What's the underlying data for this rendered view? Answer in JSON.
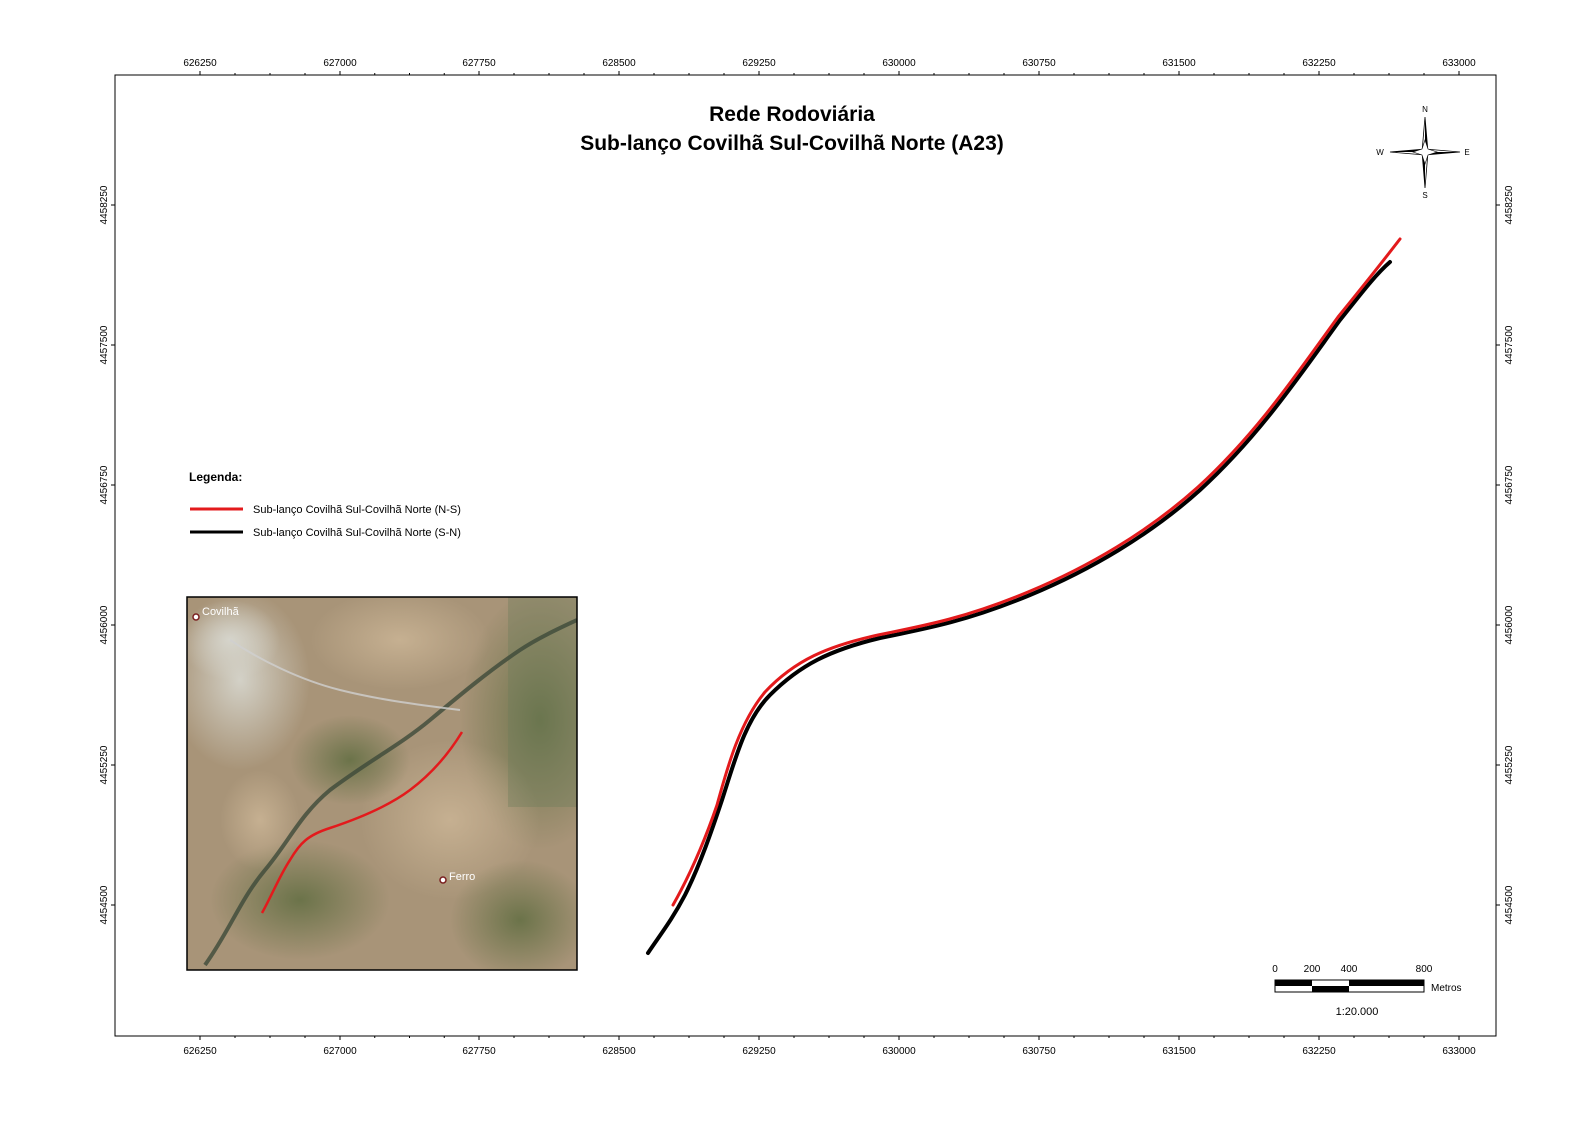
{
  "map": {
    "title_line1": "Rede Rodoviária",
    "title_line2": "Sub-lanço Covilhã Sul-Covilhã Norte (A23)",
    "grid_x_labels": [
      "626250",
      "627000",
      "627750",
      "628500",
      "629250",
      "630000",
      "630750",
      "631500",
      "632250",
      "633000"
    ],
    "grid_y_labels": [
      "4458250",
      "4457500",
      "4456750",
      "4456000",
      "4455250",
      "4454500"
    ],
    "colors": {
      "route_ns": "#e31a1c",
      "route_sn": "#000000",
      "frame": "#000000"
    }
  },
  "legend": {
    "title": "Legenda:",
    "items": [
      {
        "label": "Sub-lanço Covilhã Sul-Covilhã Norte (N-S)",
        "color": "#e31a1c"
      },
      {
        "label": "Sub-lanço Covilhã Sul-Covilhã Norte (S-N)",
        "color": "#000000"
      }
    ]
  },
  "north_arrow": {
    "n": "N",
    "s": "S",
    "e": "E",
    "w": "W",
    "icon": "north-arrow-icon"
  },
  "scale_bar": {
    "ticks": [
      "0",
      "200",
      "400",
      "800"
    ],
    "unit": "Metros",
    "ratio": "1:20.000"
  },
  "inset": {
    "places": [
      {
        "name": "Covilhã"
      },
      {
        "name": "Ferro"
      }
    ]
  }
}
